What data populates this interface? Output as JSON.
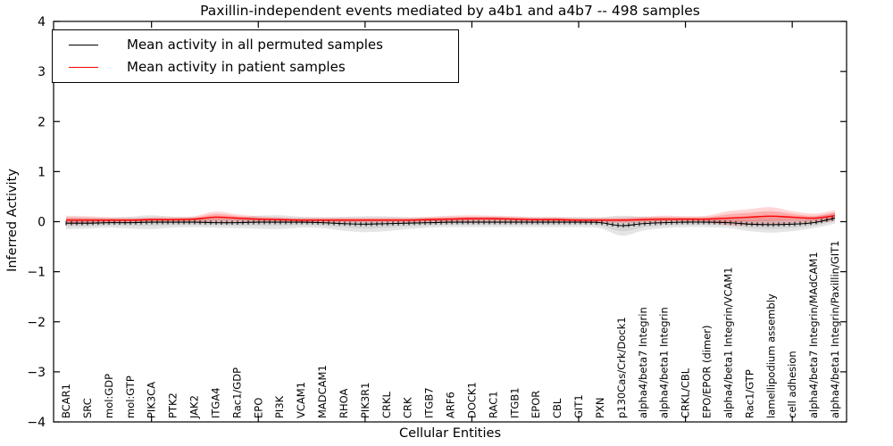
{
  "title": "Paxillin-independent events mediated by a4b1 and a4b7 -- 498 samples",
  "axes": {
    "ylabel": "Inferred Activity",
    "xlabel": "Cellular Entities"
  },
  "colors": {
    "permuted_line": "#000000",
    "patient_line": "#ff0000",
    "permuted_band": "#999999",
    "patient_band": "#ff0000",
    "spine": "#000000",
    "background": "#ffffff"
  },
  "chart_data": {
    "type": "line",
    "title": "Paxillin-independent events mediated by a4b1 and a4b7 -- 498 samples",
    "xlabel": "Cellular Entities",
    "ylabel": "Inferred Activity",
    "ylim": [
      -4,
      4
    ],
    "yticks": [
      4,
      3,
      2,
      1,
      0,
      -1,
      -2,
      -3,
      -4
    ],
    "grid": false,
    "legend_position": "upper left",
    "categories": [
      "BCAR1",
      "SRC",
      "mol:GDP",
      "mol:GTP",
      "PIK3CA",
      "PTK2",
      "JAK2",
      "ITGA4",
      "Rac1/GDP",
      "EPO",
      "PI3K",
      "VCAM1",
      "MADCAM1",
      "RHOA",
      "PIK3R1",
      "CRKL",
      "CRK",
      "ITGB7",
      "ARF6",
      "DOCK1",
      "RAC1",
      "ITGB1",
      "EPOR",
      "CBL",
      "GIT1",
      "PXN",
      "p130Cas/Crk/Dock1",
      "alpha4/beta7 Integrin",
      "alpha4/beta1 Integrin",
      "CRKL/CBL",
      "EPO/EPOR (dimer)",
      "alpha4/beta1 Integrin/VCAM1",
      "Rac1/GTP",
      "lamellipodium assembly",
      "cell adhesion",
      "alpha4/beta7 Integrin/MAdCAM1",
      "alpha4/beta1 Integrin/Paxillin/GIT1"
    ],
    "series": [
      {
        "name": "Mean activity in all permuted samples",
        "color": "#000000",
        "values": [
          -0.03,
          -0.03,
          -0.02,
          -0.02,
          -0.01,
          -0.01,
          -0.01,
          -0.02,
          -0.02,
          -0.01,
          -0.01,
          -0.01,
          -0.02,
          -0.04,
          -0.05,
          -0.04,
          -0.03,
          -0.02,
          -0.01,
          -0.01,
          -0.01,
          -0.01,
          -0.01,
          -0.01,
          -0.01,
          -0.02,
          -0.08,
          -0.04,
          -0.02,
          -0.01,
          -0.01,
          -0.02,
          -0.05,
          -0.06,
          -0.05,
          -0.02,
          0.07
        ],
        "band_halfwidth": [
          0.12,
          0.11,
          0.1,
          0.12,
          0.14,
          0.11,
          0.1,
          0.1,
          0.11,
          0.13,
          0.14,
          0.11,
          0.11,
          0.14,
          0.16,
          0.15,
          0.12,
          0.1,
          0.1,
          0.1,
          0.1,
          0.1,
          0.1,
          0.1,
          0.1,
          0.11,
          0.2,
          0.14,
          0.11,
          0.1,
          0.1,
          0.11,
          0.14,
          0.16,
          0.14,
          0.11,
          0.11
        ],
        "band_color": "#999999"
      },
      {
        "name": "Mean activity in patient samples",
        "color": "#ff0000",
        "values": [
          0.03,
          0.03,
          0.03,
          0.03,
          0.04,
          0.04,
          0.05,
          0.09,
          0.07,
          0.05,
          0.04,
          0.03,
          0.03,
          0.03,
          0.03,
          0.03,
          0.03,
          0.04,
          0.05,
          0.06,
          0.06,
          0.05,
          0.04,
          0.04,
          0.03,
          0.03,
          0.03,
          0.04,
          0.05,
          0.05,
          0.05,
          0.07,
          0.09,
          0.11,
          0.09,
          0.07,
          0.12
        ],
        "band_halfwidth": [
          0.09,
          0.08,
          0.06,
          0.05,
          0.05,
          0.05,
          0.06,
          0.11,
          0.08,
          0.06,
          0.05,
          0.05,
          0.05,
          0.05,
          0.05,
          0.05,
          0.05,
          0.06,
          0.07,
          0.07,
          0.06,
          0.06,
          0.05,
          0.05,
          0.05,
          0.05,
          0.06,
          0.06,
          0.07,
          0.06,
          0.07,
          0.14,
          0.16,
          0.18,
          0.12,
          0.09,
          0.11
        ],
        "band_color": "#ff0000"
      }
    ]
  }
}
